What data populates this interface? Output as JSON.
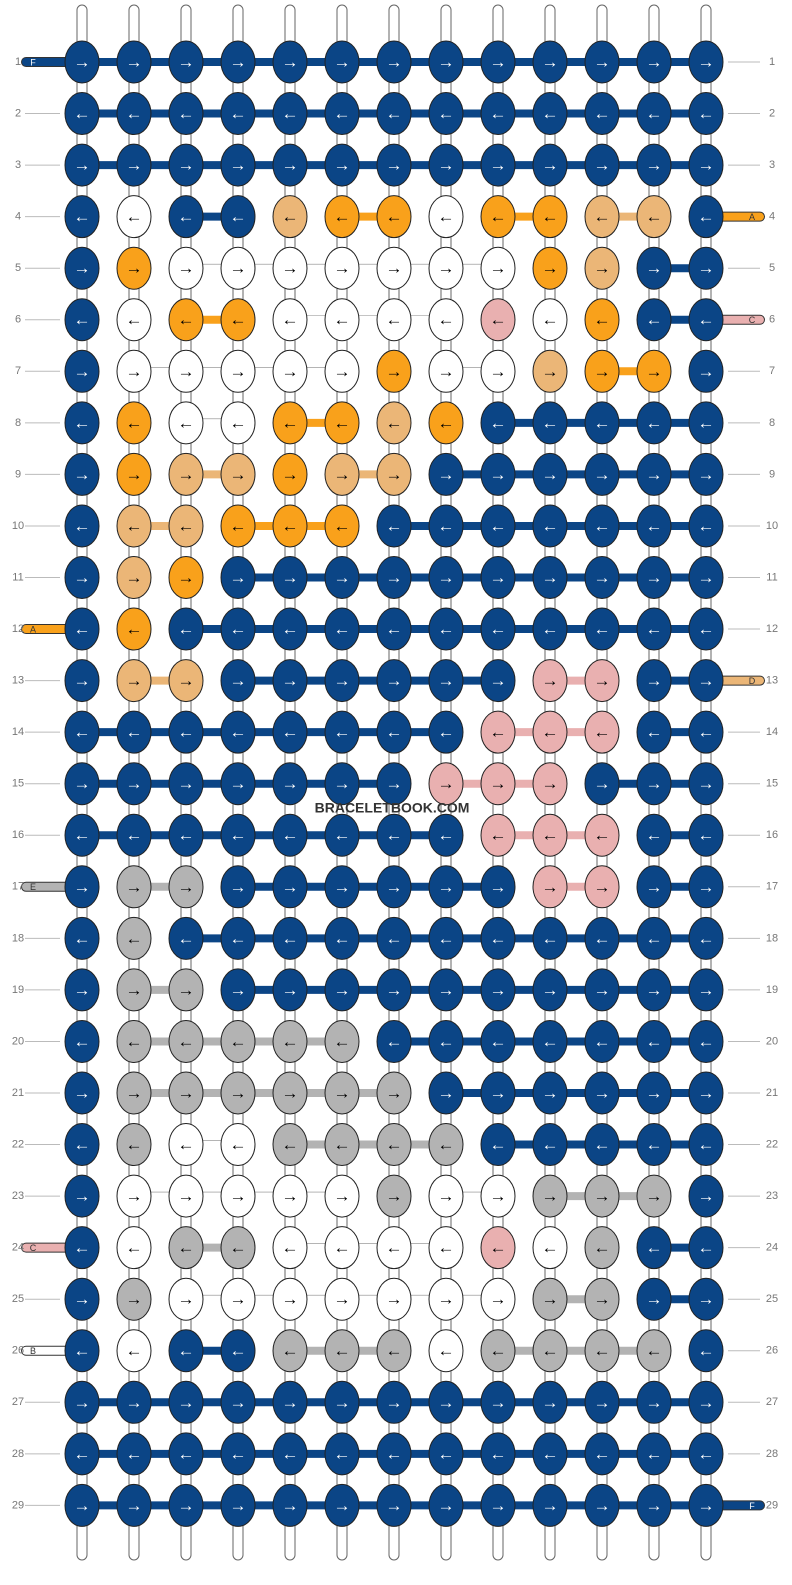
{
  "watermark": "BRACELETBOOK.COM",
  "colors": {
    "F": "#0b4586",
    "A": "#f9a11b",
    "D": "#ebb677",
    "C": "#e9b0b0",
    "E": "#b3b3b3",
    "B": "#ffffff"
  },
  "rows": [
    {
      "number": "1",
      "arrow": "→",
      "knots": "FFFFFFFFFFFFF",
      "left_tag": "F"
    },
    {
      "number": "2",
      "arrow": "←",
      "knots": "FFFFFFFFFFFFF"
    },
    {
      "number": "3",
      "arrow": "→",
      "knots": "FFFFFFFFFFFFF"
    },
    {
      "number": "4",
      "arrow": "←",
      "knots": "FBFFDAABAADDF",
      "right_tag": "A"
    },
    {
      "number": "5",
      "arrow": "→",
      "knots": "FABBBBBBBADFF"
    },
    {
      "number": "6",
      "arrow": "←",
      "knots": "FBAABBBBCBAFF",
      "right_tag": "C"
    },
    {
      "number": "7",
      "arrow": "→",
      "knots": "FBBBBBABBDAAF"
    },
    {
      "number": "8",
      "arrow": "←",
      "knots": "FABBAADAFFFFF"
    },
    {
      "number": "9",
      "arrow": "→",
      "knots": "FADDADDFFFFFF"
    },
    {
      "number": "10",
      "arrow": "←",
      "knots": "FDDAAAFFFFFFF"
    },
    {
      "number": "11",
      "arrow": "→",
      "knots": "FDAFFFFFFFFFF"
    },
    {
      "number": "12",
      "arrow": "←",
      "knots": "FAFFFFFFFFFFF",
      "left_tag": "A"
    },
    {
      "number": "13",
      "arrow": "→",
      "knots": "FDDFFFFFFCCFF",
      "right_tag": "D"
    },
    {
      "number": "14",
      "arrow": "←",
      "knots": "FFFFFFFFCCCFF"
    },
    {
      "number": "15",
      "arrow": "→",
      "knots": "FFFFFFFCCCFFF"
    },
    {
      "number": "16",
      "arrow": "←",
      "knots": "FFFFFFFFCCCFF"
    },
    {
      "number": "17",
      "arrow": "→",
      "knots": "FEEFFFFFFCCFF",
      "left_tag": "E"
    },
    {
      "number": "18",
      "arrow": "←",
      "knots": "FEFFFFFFFFFFF"
    },
    {
      "number": "19",
      "arrow": "→",
      "knots": "FEEFFFFFFFFFF"
    },
    {
      "number": "20",
      "arrow": "←",
      "knots": "FEEEEEFFFFFFF"
    },
    {
      "number": "21",
      "arrow": "→",
      "knots": "FEEEEEEFFFFFF"
    },
    {
      "number": "22",
      "arrow": "←",
      "knots": "FEBBEEEEFFFFF"
    },
    {
      "number": "23",
      "arrow": "→",
      "knots": "FBBBBBEBBEEEF"
    },
    {
      "number": "24",
      "arrow": "←",
      "knots": "FBEEBBBBCBEFF",
      "left_tag": "C"
    },
    {
      "number": "25",
      "arrow": "→",
      "knots": "FEBBBBBBBEEFF"
    },
    {
      "number": "26",
      "arrow": "←",
      "knots": "FBFFEEEBEEEEF",
      "left_tag": "B"
    },
    {
      "number": "27",
      "arrow": "→",
      "knots": "FFFFFFFFFFFFF"
    },
    {
      "number": "28",
      "arrow": "←",
      "knots": "FFFFFFFFFFFFF"
    },
    {
      "number": "29",
      "arrow": "→",
      "knots": "FFFFFFFFFFFFF",
      "right_tag": "F"
    }
  ]
}
